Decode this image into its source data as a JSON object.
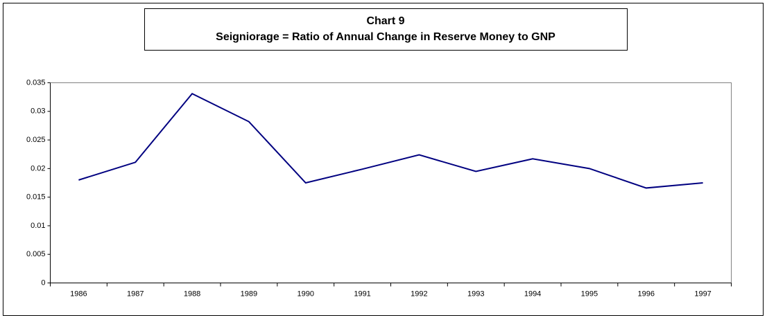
{
  "chart_data": {
    "type": "line",
    "title": "Chart 9",
    "subtitle": "Seigniorage = Ratio of Annual Change in Reserve Money to GNP",
    "categories": [
      "1986",
      "1987",
      "1988",
      "1989",
      "1990",
      "1991",
      "1992",
      "1993",
      "1994",
      "1995",
      "1996",
      "1997"
    ],
    "series": [
      {
        "name": "Seigniorage",
        "color": "#000080",
        "values": [
          0.018,
          0.0211,
          0.0331,
          0.0282,
          0.0175,
          0.0199,
          0.0224,
          0.0195,
          0.0217,
          0.02,
          0.0166,
          0.0175
        ]
      }
    ],
    "ylim": [
      0,
      0.035
    ],
    "yticks": [
      0,
      0.005,
      0.01,
      0.015,
      0.02,
      0.025,
      0.03,
      0.035
    ],
    "grid": false,
    "legend": false
  }
}
